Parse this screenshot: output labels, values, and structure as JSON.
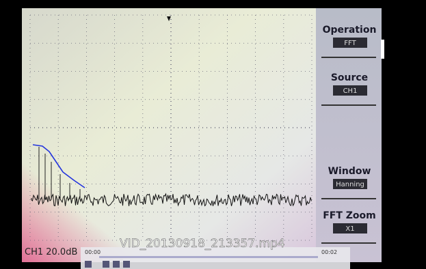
{
  "menu": [
    {
      "label": "Operation",
      "value": "FFT"
    },
    {
      "label": "Source",
      "value": "CH1"
    },
    {
      "label": "Window",
      "value": "Hanning"
    },
    {
      "label": "FFT Zoom",
      "value": "X1"
    }
  ],
  "channel_scale": "CH1 20.0dB",
  "video": {
    "filename": "VID_20130918_213357.mp4",
    "time_start": "00:00",
    "time_end": "00:02"
  }
}
